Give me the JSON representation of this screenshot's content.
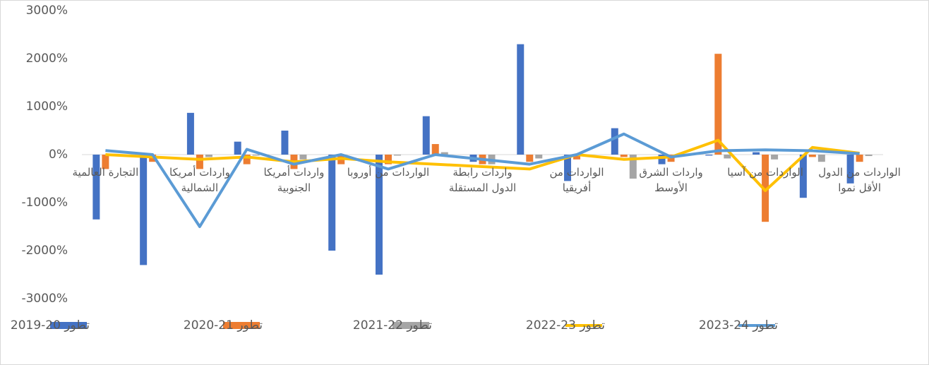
{
  "chart_data": {
    "type": "bar-line",
    "categories": [
      "التجارة العالمية",
      null,
      "واردات أمريكا الشمالية",
      null,
      "واردات أمريكا الجنوبية",
      null,
      "الواردات من أوروبا",
      null,
      "واردات رابطة الدول المستقلة",
      null,
      "الواردات من أفريقيا",
      null,
      "واردات الشرق الأوسط",
      null,
      "الواردات من آسيا",
      null,
      "الواردات من الدول الأقل نموا"
    ],
    "series": [
      {
        "name": "تطور 20-2019",
        "type": "bar",
        "color": "#4472c4",
        "values": [
          -1350,
          -2300,
          870,
          270,
          500,
          -2000,
          -2500,
          800,
          -150,
          2300,
          -550,
          550,
          -200,
          -20,
          50,
          -900,
          -600
        ]
      },
      {
        "name": "تطور 21-2020",
        "type": "bar",
        "color": "#ed7d31",
        "values": [
          -300,
          -150,
          -300,
          -200,
          -300,
          -200,
          -200,
          220,
          -200,
          -150,
          -100,
          -50,
          -150,
          2100,
          -1400,
          -50,
          -150
        ]
      },
      {
        "name": "تطور 22-2021",
        "type": "bar",
        "color": "#a5a5a5",
        "values": [
          0,
          0,
          -50,
          -20,
          -100,
          0,
          -20,
          50,
          -200,
          -80,
          -20,
          -500,
          -20,
          -80,
          -100,
          -150,
          -30
        ]
      },
      {
        "name": "تطور 23-2022",
        "type": "line",
        "color": "#ffc000",
        "values": [
          0,
          -50,
          -100,
          -50,
          -150,
          -80,
          -150,
          -200,
          -250,
          -300,
          0,
          -100,
          -50,
          300,
          -750,
          150,
          30
        ]
      },
      {
        "name": "تطور 24-2023",
        "type": "line",
        "color": "#5b9bd5",
        "values": [
          85,
          0,
          -1500,
          110,
          -200,
          0,
          -300,
          0,
          -100,
          -200,
          0,
          430,
          -50,
          80,
          100,
          80,
          20
        ]
      }
    ],
    "ylim": [
      -3000,
      3000
    ],
    "yticks": [
      {
        "value": -3000,
        "label": "-3000%"
      },
      {
        "value": -2000,
        "label": "-2000%"
      },
      {
        "value": -1000,
        "label": "-1000%"
      },
      {
        "value": 0,
        "label": "0%"
      },
      {
        "value": 1000,
        "label": "1000%"
      },
      {
        "value": 2000,
        "label": "2000%"
      },
      {
        "value": 3000,
        "label": "3000%"
      }
    ],
    "legend": "bottom"
  }
}
